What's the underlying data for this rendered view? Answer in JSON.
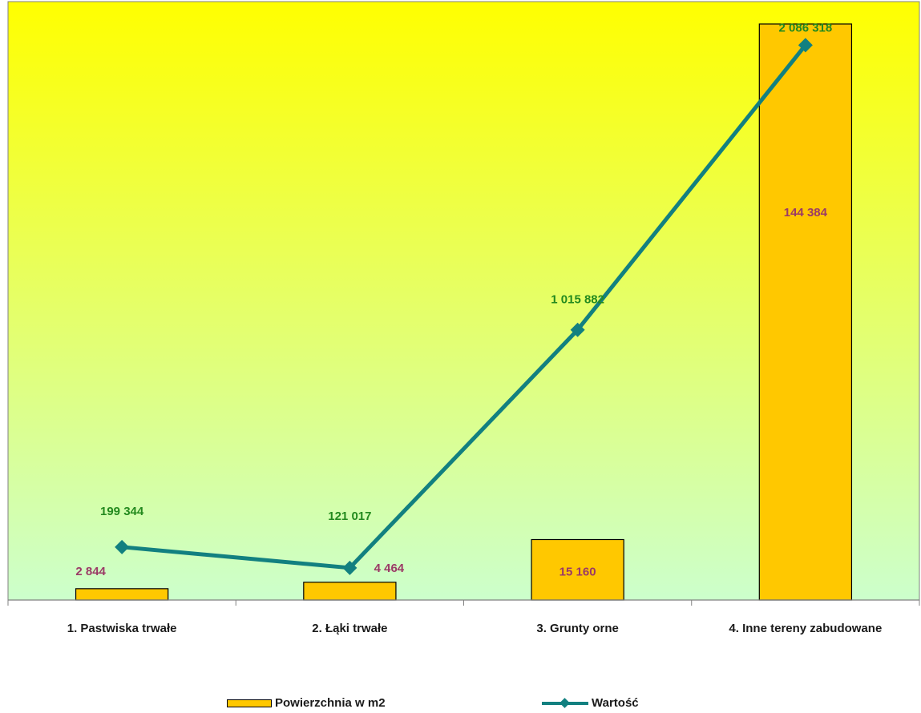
{
  "chart_data": {
    "type": "bar",
    "categories": [
      "1. Pastwiska trwałe",
      "2. Łąki trwałe",
      "3. Grunty orne",
      "4. Inne tereny zabudowane"
    ],
    "series": [
      {
        "name": "Powierzchnia w m2",
        "type": "bar",
        "axis": "secondary",
        "values": [
          2844,
          4464,
          15160,
          144384
        ],
        "labels": [
          "2 844",
          "4 464",
          "15 160",
          "144 384"
        ],
        "color": "#ffc800",
        "label_color": "#9b3a66"
      },
      {
        "name": "Wartość",
        "type": "line",
        "axis": "primary",
        "values": [
          199344,
          121017,
          1015882,
          2086318
        ],
        "labels": [
          "199 344",
          "121 017",
          "1 015 882",
          "2 086 318"
        ],
        "color": "#128080",
        "label_color": "#238a1e"
      }
    ],
    "title": "",
    "xlabel": "",
    "ylabel": "",
    "primary_ylim": [
      0,
      2250000
    ],
    "secondary_ylim": [
      0,
      150000
    ],
    "grid": false,
    "legend": "bottom",
    "background_gradient": [
      "#ffff00",
      "#ccffcc"
    ]
  }
}
